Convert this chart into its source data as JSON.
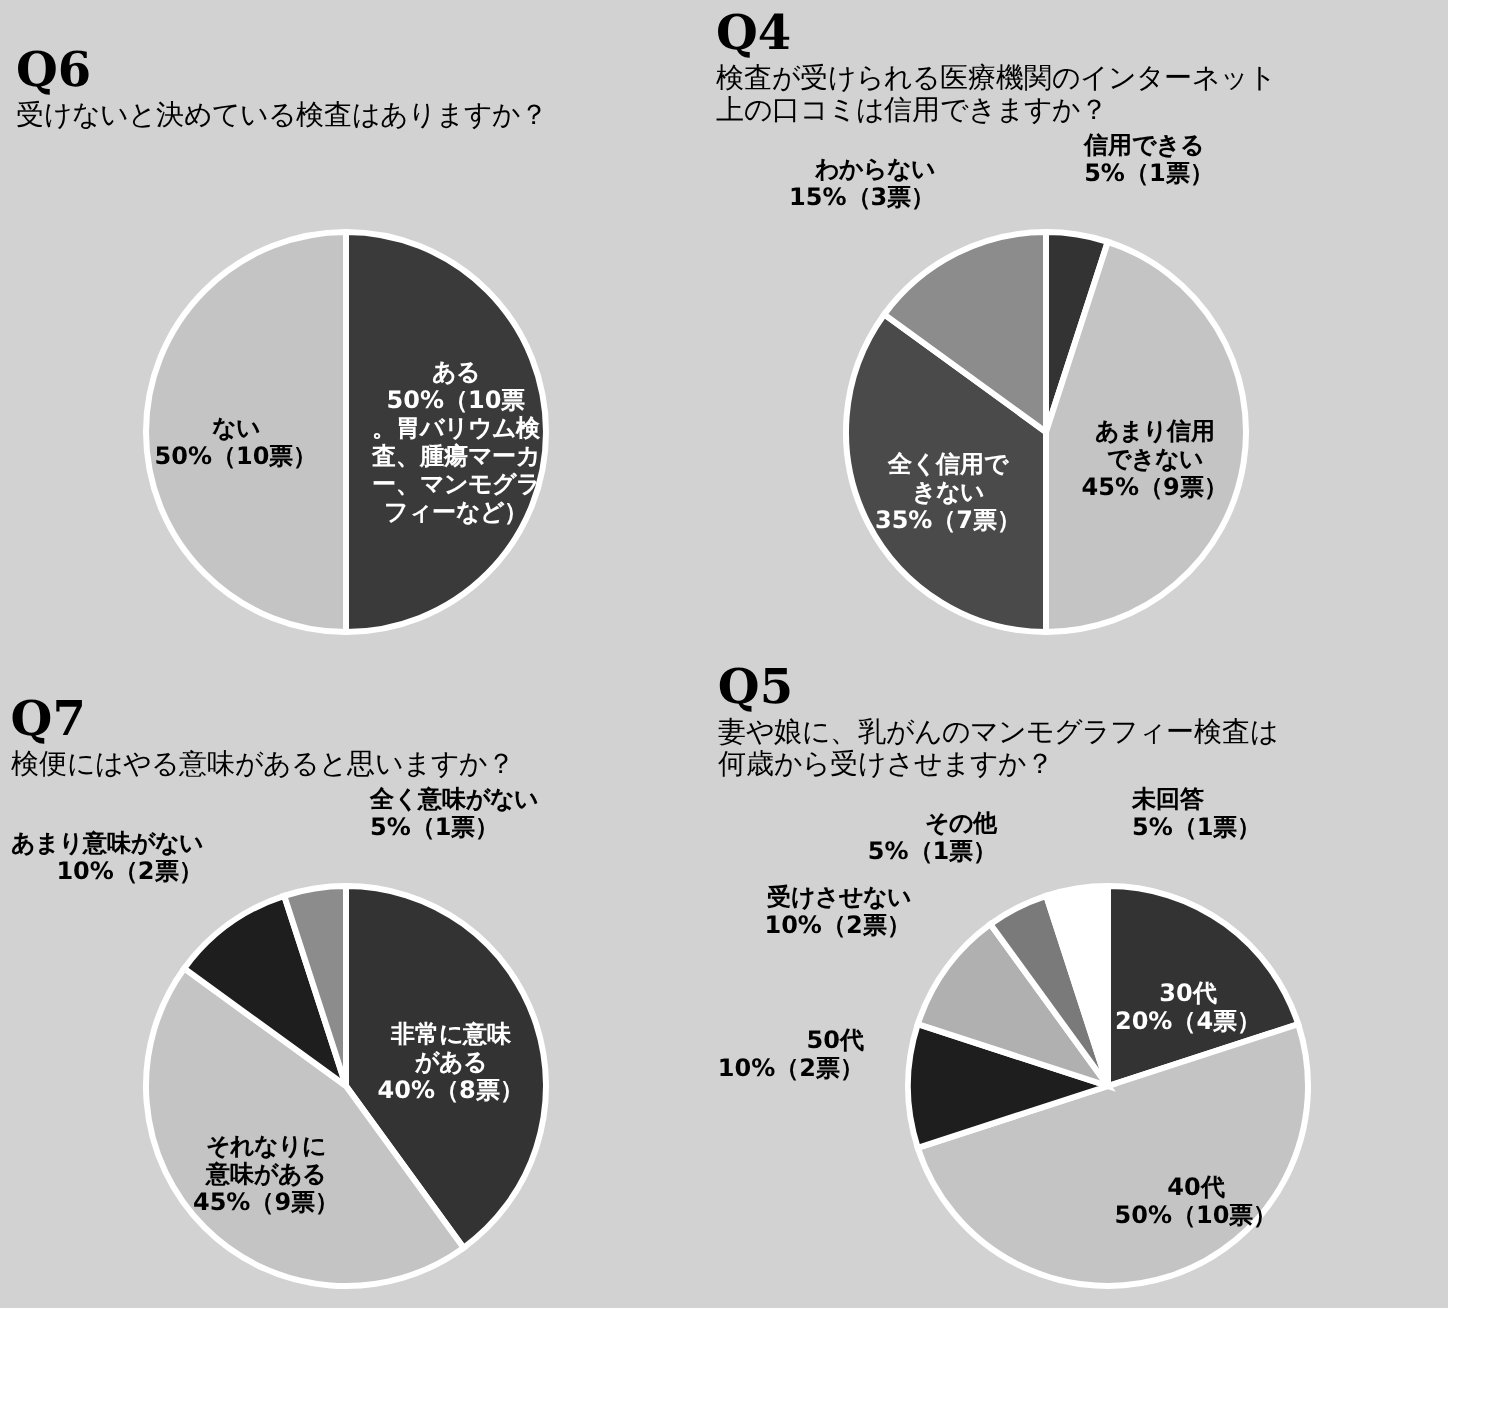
{
  "chart_data": [
    {
      "type": "pie",
      "title": "Q6",
      "subtitle": "受けないと決めている検査はありますか？",
      "categories": [
        "ある",
        "ない"
      ],
      "values": [
        50,
        50
      ],
      "colors": [
        "#3a3a3a",
        "#c4c4c4"
      ],
      "value_labels": [
        "50%（10票。胃バリウム検査、腫瘍マーカー、マンモグラフィーなど）",
        "50%（10票）"
      ]
    },
    {
      "type": "pie",
      "title": "Q4",
      "subtitle": "検査が受けられる医療機関のインターネット上の口コミは信用できますか？",
      "categories": [
        "信用できる",
        "あまり信用できない",
        "全く信用できない",
        "わからない"
      ],
      "values": [
        5,
        45,
        35,
        15
      ],
      "colors": [
        "#333333",
        "#c4c4c4",
        "#4a4a4a",
        "#8c8c8c"
      ],
      "value_labels": [
        "5%（1票）",
        "45%（9票）",
        "35%（7票）",
        "15%（3票）"
      ]
    },
    {
      "type": "pie",
      "title": "Q7",
      "subtitle": "検便にはやる意味があると思いますか？",
      "categories": [
        "非常に意味がある",
        "それなりに意味がある",
        "あまり意味がない",
        "全く意味がない"
      ],
      "values": [
        40,
        45,
        10,
        5
      ],
      "colors": [
        "#333333",
        "#c4c4c4",
        "#1e1e1e",
        "#8c8c8c"
      ],
      "value_labels": [
        "40%（8票）",
        "45%（9票）",
        "10%（2票）",
        "5%（1票）"
      ]
    },
    {
      "type": "pie",
      "title": "Q5",
      "subtitle": "妻や娘に、乳がんのマンモグラフィー検査は何歳から受けさせますか？",
      "categories": [
        "30代",
        "40代",
        "50代",
        "受けさせない",
        "その他",
        "未回答"
      ],
      "values": [
        20,
        50,
        10,
        10,
        5,
        5
      ],
      "colors": [
        "#333333",
        "#c4c4c4",
        "#1e1e1e",
        "#b0b0b0",
        "#7a7a7a",
        "#ffffff"
      ],
      "value_labels": [
        "20%（4票）",
        "50%（10票）",
        "10%（2票）",
        "10%（2票）",
        "5%（1票）",
        "5%（1票）"
      ]
    }
  ]
}
